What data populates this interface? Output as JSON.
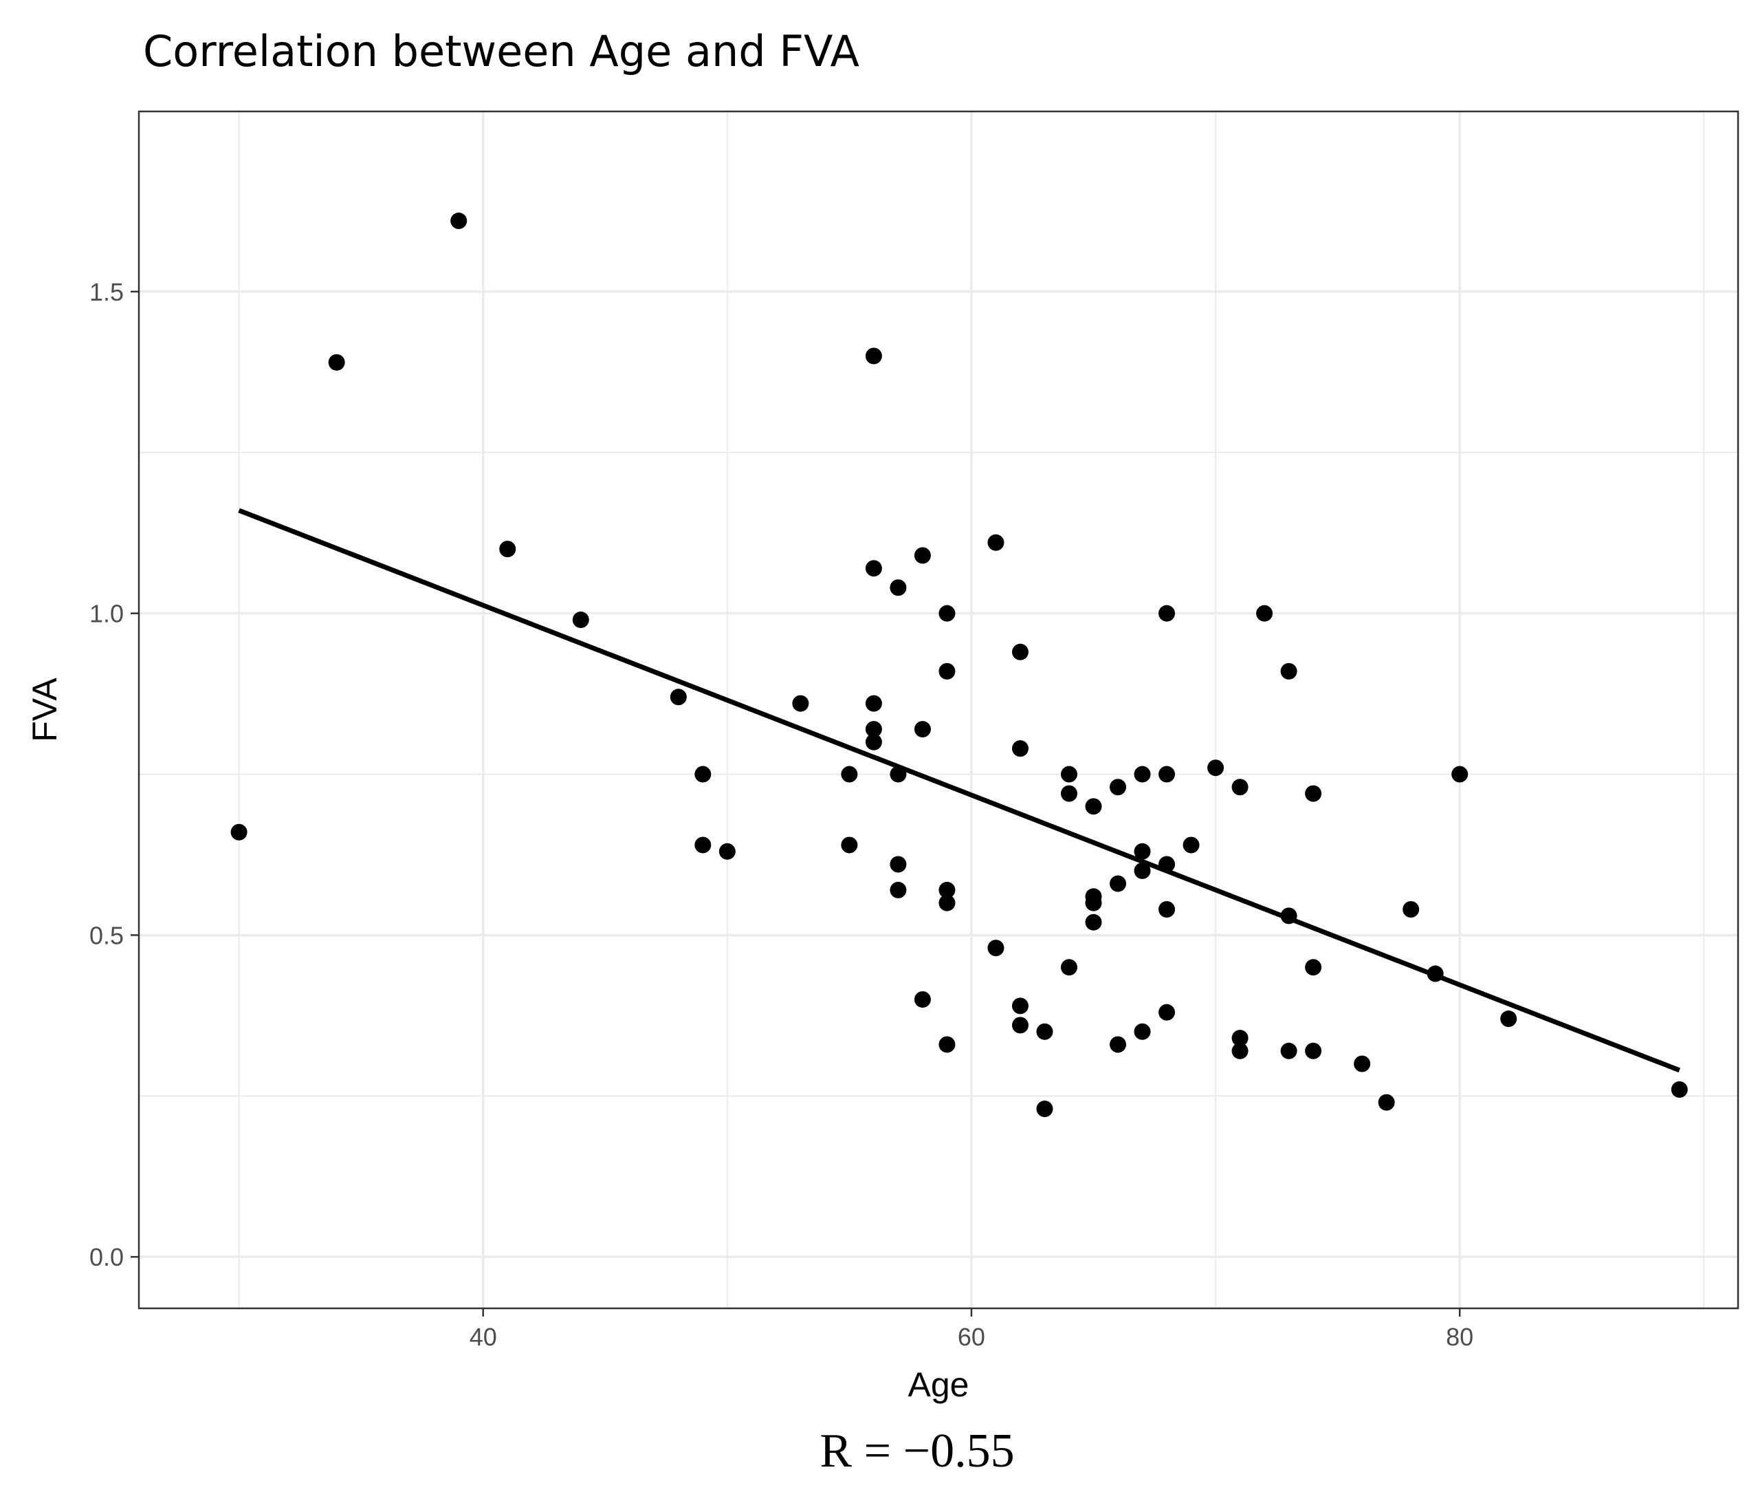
{
  "chart_data": {
    "type": "scatter",
    "title": "Correlation between Age and FVA",
    "xlabel": "Age",
    "ylabel": "FVA",
    "caption": "R = −0.55",
    "xlim": [
      25.9,
      91.4
    ],
    "ylim": [
      -0.08,
      1.78
    ],
    "x_major_ticks": [
      40,
      60,
      80
    ],
    "x_tick_labels": [
      "40",
      "60",
      "80"
    ],
    "x_minor_grid": [
      30,
      50,
      70,
      90
    ],
    "y_major_ticks": [
      0.0,
      0.5,
      1.0,
      1.5
    ],
    "y_tick_labels": [
      "0.0",
      "0.5",
      "1.0",
      "1.5"
    ],
    "y_minor_grid": [
      0.25,
      0.75,
      1.25
    ],
    "grid": true,
    "colors": {
      "points": "#000000",
      "line": "#000000",
      "grid": "#ebebeb",
      "panel_border": "#333333",
      "tick_label": "#4d4d4d"
    },
    "trend_line": {
      "x": [
        30,
        89
      ],
      "y": [
        1.16,
        0.29
      ]
    },
    "points": {
      "x": [
        30,
        34,
        39,
        41,
        44,
        48,
        49,
        49,
        50,
        53,
        55,
        55,
        56,
        56,
        56,
        56,
        56,
        57,
        57,
        57,
        57,
        58,
        58,
        58,
        59,
        59,
        59,
        59,
        59,
        61,
        61,
        62,
        62,
        62,
        62,
        63,
        63,
        64,
        64,
        64,
        65,
        65,
        65,
        65,
        66,
        66,
        66,
        67,
        67,
        67,
        67,
        68,
        68,
        68,
        68,
        68,
        69,
        70,
        71,
        71,
        71,
        72,
        73,
        73,
        73,
        74,
        74,
        74,
        76,
        77,
        78,
        79,
        80,
        82,
        89
      ],
      "y": [
        0.66,
        1.39,
        1.61,
        1.1,
        0.99,
        0.87,
        0.75,
        0.64,
        0.63,
        0.86,
        0.75,
        0.64,
        1.4,
        1.07,
        0.86,
        0.82,
        0.8,
        1.04,
        0.75,
        0.61,
        0.57,
        1.09,
        0.82,
        0.4,
        1.0,
        0.91,
        0.57,
        0.55,
        0.33,
        1.11,
        0.48,
        0.94,
        0.79,
        0.39,
        0.36,
        0.35,
        0.23,
        0.75,
        0.72,
        0.45,
        0.7,
        0.56,
        0.55,
        0.52,
        0.73,
        0.58,
        0.33,
        0.75,
        0.63,
        0.6,
        0.35,
        1.0,
        0.75,
        0.61,
        0.54,
        0.38,
        0.64,
        0.76,
        0.73,
        0.34,
        0.32,
        1.0,
        0.91,
        0.53,
        0.32,
        0.72,
        0.45,
        0.32,
        0.3,
        0.24,
        0.54,
        0.44,
        0.75,
        0.37,
        0.26
      ]
    }
  }
}
